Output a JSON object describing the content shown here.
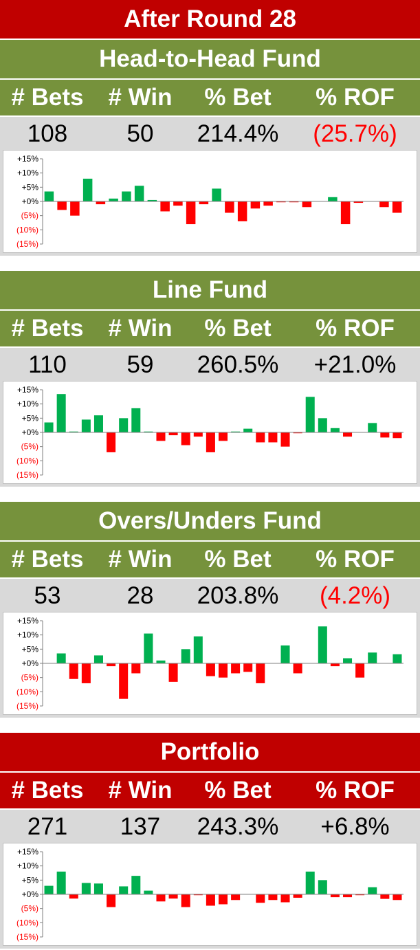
{
  "header": {
    "title": "After Round  28"
  },
  "labels": {
    "bets": "# Bets",
    "win": "# Win",
    "pct_bet": "% Bet",
    "pct_rof": "% ROF"
  },
  "colors": {
    "red_band": "#c00000",
    "green_band": "#76923c",
    "pos_bar": "#00b050",
    "neg_bar": "#ff0000",
    "value_bg": "#d9d9d9"
  },
  "funds": [
    {
      "name": "Head-to-Head Fund",
      "bets": "108",
      "win": "50",
      "pct_bet": "214.4%",
      "pct_rof": "(25.7%)",
      "rof_negative": true
    },
    {
      "name": "Line Fund",
      "bets": "110",
      "win": "59",
      "pct_bet": "260.5%",
      "pct_rof": "+21.0%",
      "rof_negative": false
    },
    {
      "name": "Overs/Unders Fund",
      "bets": "53",
      "win": "28",
      "pct_bet": "203.8%",
      "pct_rof": "(4.2%)",
      "rof_negative": true
    },
    {
      "name": "Portfolio",
      "bets": "271",
      "win": "137",
      "pct_bet": "243.3%",
      "pct_rof": "+6.8%",
      "rof_negative": false
    }
  ],
  "chart_data": [
    {
      "type": "bar",
      "title": "",
      "xlabel": "",
      "ylabel": "",
      "y_ticks": [
        "+15%",
        "+10%",
        "+5%",
        "+0%",
        "(5%)",
        "(10%)",
        "(15%)"
      ],
      "ylim": [
        -15,
        15
      ],
      "values": [
        3.5,
        -3,
        -5,
        8,
        -1,
        1,
        3.5,
        5.5,
        0.5,
        -3.5,
        -1.5,
        -8,
        -1,
        4.5,
        -4,
        -7,
        -2.5,
        -1.5,
        -0.3,
        -0.3,
        -2,
        0,
        1.5,
        -8,
        -0.5,
        0,
        -2,
        -4
      ]
    },
    {
      "type": "bar",
      "title": "",
      "xlabel": "",
      "ylabel": "",
      "y_ticks": [
        "+15%",
        "+10%",
        "+5%",
        "+0%",
        "(5%)",
        "(10%)",
        "(15%)"
      ],
      "ylim": [
        -15,
        15
      ],
      "values": [
        3.5,
        13.5,
        0.3,
        4.5,
        6,
        -7,
        5,
        8.5,
        0.3,
        -3,
        -1,
        -4.5,
        -1.5,
        -7,
        -3,
        0.3,
        1.3,
        -3.5,
        -3.5,
        -5,
        -0.3,
        12.5,
        5,
        1.5,
        -1.5,
        0,
        3.3,
        -1.8,
        -2
      ]
    },
    {
      "type": "bar",
      "title": "",
      "xlabel": "",
      "ylabel": "",
      "y_ticks": [
        "+15%",
        "+10%",
        "+5%",
        "+0%",
        "(5%)",
        "(10%)",
        "(15%)"
      ],
      "ylim": [
        -15,
        15
      ],
      "values": [
        0,
        3.5,
        -5.5,
        -7,
        2.8,
        -1,
        -12.5,
        -3.5,
        10.5,
        1,
        -6.5,
        5,
        9.5,
        -4.5,
        -5,
        -3.5,
        -3,
        -7,
        0,
        6.3,
        -3.5,
        0,
        13,
        -1,
        1.8,
        -5,
        3.8,
        0,
        3.2
      ]
    },
    {
      "type": "bar",
      "title": "",
      "xlabel": "",
      "ylabel": "",
      "y_ticks": [
        "+15%",
        "+10%",
        "+5%",
        "+0%",
        "(5%)",
        "(10%)",
        "(15%)"
      ],
      "ylim": [
        -15,
        15
      ],
      "values": [
        3,
        8,
        -1.5,
        4,
        3.8,
        -4.5,
        2.8,
        6.5,
        1.3,
        -2.5,
        -1.5,
        -4.5,
        -0.3,
        -4,
        -3.5,
        -2,
        0,
        -3,
        -2,
        -2.8,
        -1.2,
        8,
        5,
        -1,
        -1,
        -0.3,
        2.5,
        -1.6,
        -2
      ]
    }
  ]
}
